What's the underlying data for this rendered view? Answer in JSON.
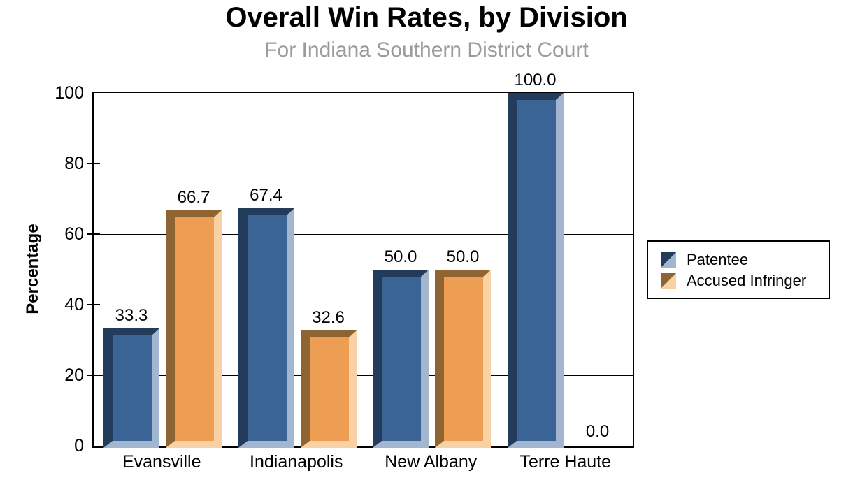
{
  "title": "Overall Win Rates, by Division",
  "subtitle": "For Indiana Southern District Court",
  "chart_data": {
    "type": "bar",
    "title": "Overall Win Rates, by Division",
    "subtitle": "For Indiana Southern District Court",
    "categories": [
      "Evansville",
      "Indianapolis",
      "New Albany",
      "Terre Haute"
    ],
    "series": [
      {
        "name": "Patentee",
        "values": [
          33.3,
          67.4,
          50.0,
          100.0
        ],
        "fill": "#3A6495",
        "edge_dark": "#233C5B",
        "edge_light": "#A2B6D0"
      },
      {
        "name": "Accused Infringer",
        "values": [
          66.7,
          32.6,
          50.0,
          0.0
        ],
        "fill": "#EE9E52",
        "edge_dark": "#8E6532",
        "edge_light": "#F8D2A5"
      }
    ],
    "xlabel": "",
    "ylabel": "Percentage",
    "ylim": [
      0,
      100
    ],
    "yticks": [
      0,
      20,
      40,
      60,
      80,
      100
    ],
    "grid": true,
    "legend_position": "right",
    "value_labels": true,
    "value_label_format": "one-decimal"
  },
  "colors": {
    "background": "#FFFFFF",
    "axis": "#000000",
    "subtitle_gray": "#9B9B9B",
    "text": "#000000"
  }
}
